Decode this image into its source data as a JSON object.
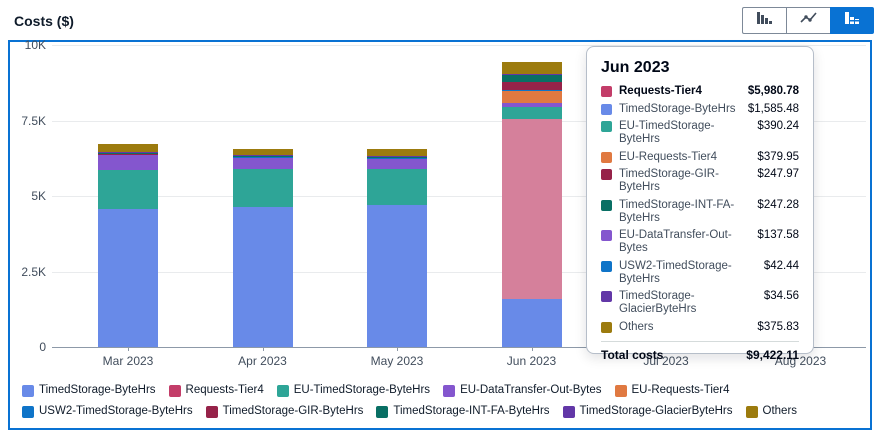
{
  "header": {
    "title": "Costs ($)"
  },
  "toolbar": {
    "buttons": [
      {
        "label": "bar-chart-view",
        "selected": false
      },
      {
        "label": "line-chart-view",
        "selected": false
      },
      {
        "label": "stacked-bar-chart-view",
        "selected": true
      }
    ],
    "selected_color": "#0972d3"
  },
  "chart_data": {
    "type": "bar",
    "stacked": true,
    "title": "Costs ($)",
    "xlabel": "",
    "ylabel": "Costs ($)",
    "ylim": [
      0,
      10000
    ],
    "y_tick_labels": [
      "0",
      "2.5K",
      "5K",
      "7.5K",
      "10K"
    ],
    "y_tick_values": [
      0,
      2500,
      5000,
      7500,
      10000
    ],
    "categories": [
      "Mar 2023",
      "Apr 2023",
      "May 2023",
      "Jun 2023",
      "Jul 2023",
      "Aug 2023"
    ],
    "grid": true,
    "legend_position": "bottom",
    "series": [
      {
        "name": "TimedStorage-ByteHrs",
        "color": "#688ae8",
        "values": [
          4560,
          4645,
          4692,
          1585.48,
          0,
          0
        ]
      },
      {
        "name": "Requests-Tier4",
        "color": "#c33d69",
        "values": [
          0,
          0,
          0,
          5980.78,
          0,
          0
        ],
        "highlight": {
          "index": 3,
          "color": "#d5809b"
        }
      },
      {
        "name": "EU-TimedStorage-ByteHrs",
        "color": "#2ea597",
        "values": [
          1300,
          1249,
          1192,
          390.24,
          0,
          0
        ]
      },
      {
        "name": "EU-DataTransfer-Out-Bytes",
        "color": "#8456ce",
        "values": [
          490,
          374,
          331,
          137.58,
          0,
          0
        ]
      },
      {
        "name": "EU-Requests-Tier4",
        "color": "#e07941",
        "values": [
          0,
          0,
          0,
          379.95,
          0,
          0
        ]
      },
      {
        "name": "USW2-TimedStorage-ByteHrs",
        "color": "#0f74c8",
        "values": [
          40,
          35,
          45,
          42.44,
          0,
          0
        ]
      },
      {
        "name": "TimedStorage-GIR-ByteHrs",
        "color": "#962249",
        "values": [
          15,
          15,
          20,
          247.97,
          0,
          0
        ]
      },
      {
        "name": "TimedStorage-INT-FA-ByteHrs",
        "color": "#096f64",
        "values": [
          15,
          15,
          20,
          247.28,
          0,
          0
        ]
      },
      {
        "name": "TimedStorage-GlacierByteHrs",
        "color": "#6237a7",
        "values": [
          25,
          24,
          34,
          34.56,
          0,
          0
        ]
      },
      {
        "name": "Others",
        "color": "#9c7b0e",
        "values": [
          280,
          199,
          222,
          375.83,
          0,
          0
        ]
      }
    ]
  },
  "tooltip": {
    "title": "Jun 2023",
    "rows": [
      {
        "label": "Requests-Tier4",
        "value": "$5,980.78",
        "color": "#c33d69",
        "bold": true
      },
      {
        "label": "TimedStorage-ByteHrs",
        "value": "$1,585.48",
        "color": "#688ae8",
        "bold": false
      },
      {
        "label": "EU-TimedStorage-ByteHrs",
        "value": "$390.24",
        "color": "#2ea597",
        "bold": false
      },
      {
        "label": "EU-Requests-Tier4",
        "value": "$379.95",
        "color": "#e07941",
        "bold": false
      },
      {
        "label": "TimedStorage-GIR-ByteHrs",
        "value": "$247.97",
        "color": "#962249",
        "bold": false
      },
      {
        "label": "TimedStorage-INT-FA-ByteHrs",
        "value": "$247.28",
        "color": "#096f64",
        "bold": false
      },
      {
        "label": "EU-DataTransfer-Out-Bytes",
        "value": "$137.58",
        "color": "#8456ce",
        "bold": false
      },
      {
        "label": "USW2-TimedStorage-ByteHrs",
        "value": "$42.44",
        "color": "#0f74c8",
        "bold": false
      },
      {
        "label": "TimedStorage-GlacierByteHrs",
        "value": "$34.56",
        "color": "#6237a7",
        "bold": false
      },
      {
        "label": "Others",
        "value": "$375.83",
        "color": "#9c7b0e",
        "bold": false
      }
    ],
    "total_label": "Total costs",
    "total_value": "$9,422.11"
  }
}
